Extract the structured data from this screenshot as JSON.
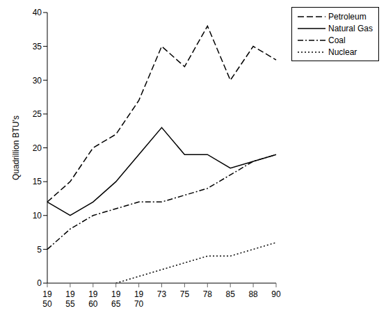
{
  "chart_data": {
    "type": "line",
    "y_label": "Quadrillion BTU's",
    "categories": [
      "19\n50",
      "19\n55",
      "19\n60",
      "19\n65",
      "19\n70",
      "73",
      "75",
      "78",
      "85",
      "88",
      "90"
    ],
    "series": [
      {
        "name": "Petroleum",
        "color": "#000000",
        "line_style": "dashed",
        "values": [
          12,
          15,
          20,
          22,
          27,
          35,
          32,
          38,
          30,
          35,
          33
        ]
      },
      {
        "name": "Natural Gas",
        "color": "#000000",
        "line_style": "solid",
        "values": [
          12,
          10,
          12,
          15,
          19,
          23,
          19,
          19,
          17,
          18,
          19
        ]
      },
      {
        "name": "Coal",
        "color": "#000000",
        "line_style": "dashdot",
        "values": [
          5,
          8,
          10,
          11,
          12,
          12,
          13,
          14,
          16,
          18,
          19
        ]
      },
      {
        "name": "Nuclear",
        "color": "#000000",
        "line_style": "dotted",
        "values": [
          null,
          null,
          null,
          0,
          1,
          2,
          3,
          4,
          4,
          5,
          6
        ]
      }
    ],
    "ylim": [
      0,
      40
    ],
    "yticks": [
      0,
      5,
      10,
      15,
      20,
      25,
      30,
      35,
      40
    ],
    "grid": false,
    "legend": "top-right"
  }
}
